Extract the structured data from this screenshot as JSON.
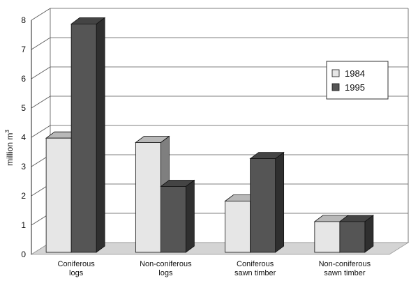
{
  "chart_data": {
    "type": "bar",
    "title": "",
    "xlabel": "",
    "ylabel": "million m",
    "ylabel_superscript": "3",
    "ylim": [
      0,
      8
    ],
    "yticks": [
      "0",
      "1",
      "2",
      "3",
      "4",
      "5",
      "6",
      "7",
      "8"
    ],
    "categories": [
      [
        "Coniferous",
        "logs"
      ],
      [
        "Non-coniferous",
        "logs"
      ],
      [
        "Coniferous",
        "sawn timber"
      ],
      [
        "Non-coniferous",
        "sawn timber"
      ]
    ],
    "series": [
      {
        "name": "1984",
        "color": "#e6e6e6",
        "values": [
          3.9,
          3.75,
          1.75,
          1.05
        ]
      },
      {
        "name": "1995",
        "color": "#555555",
        "values": [
          7.8,
          2.25,
          3.2,
          1.05
        ]
      }
    ],
    "grid": true,
    "legend": "right",
    "style": "3d"
  }
}
